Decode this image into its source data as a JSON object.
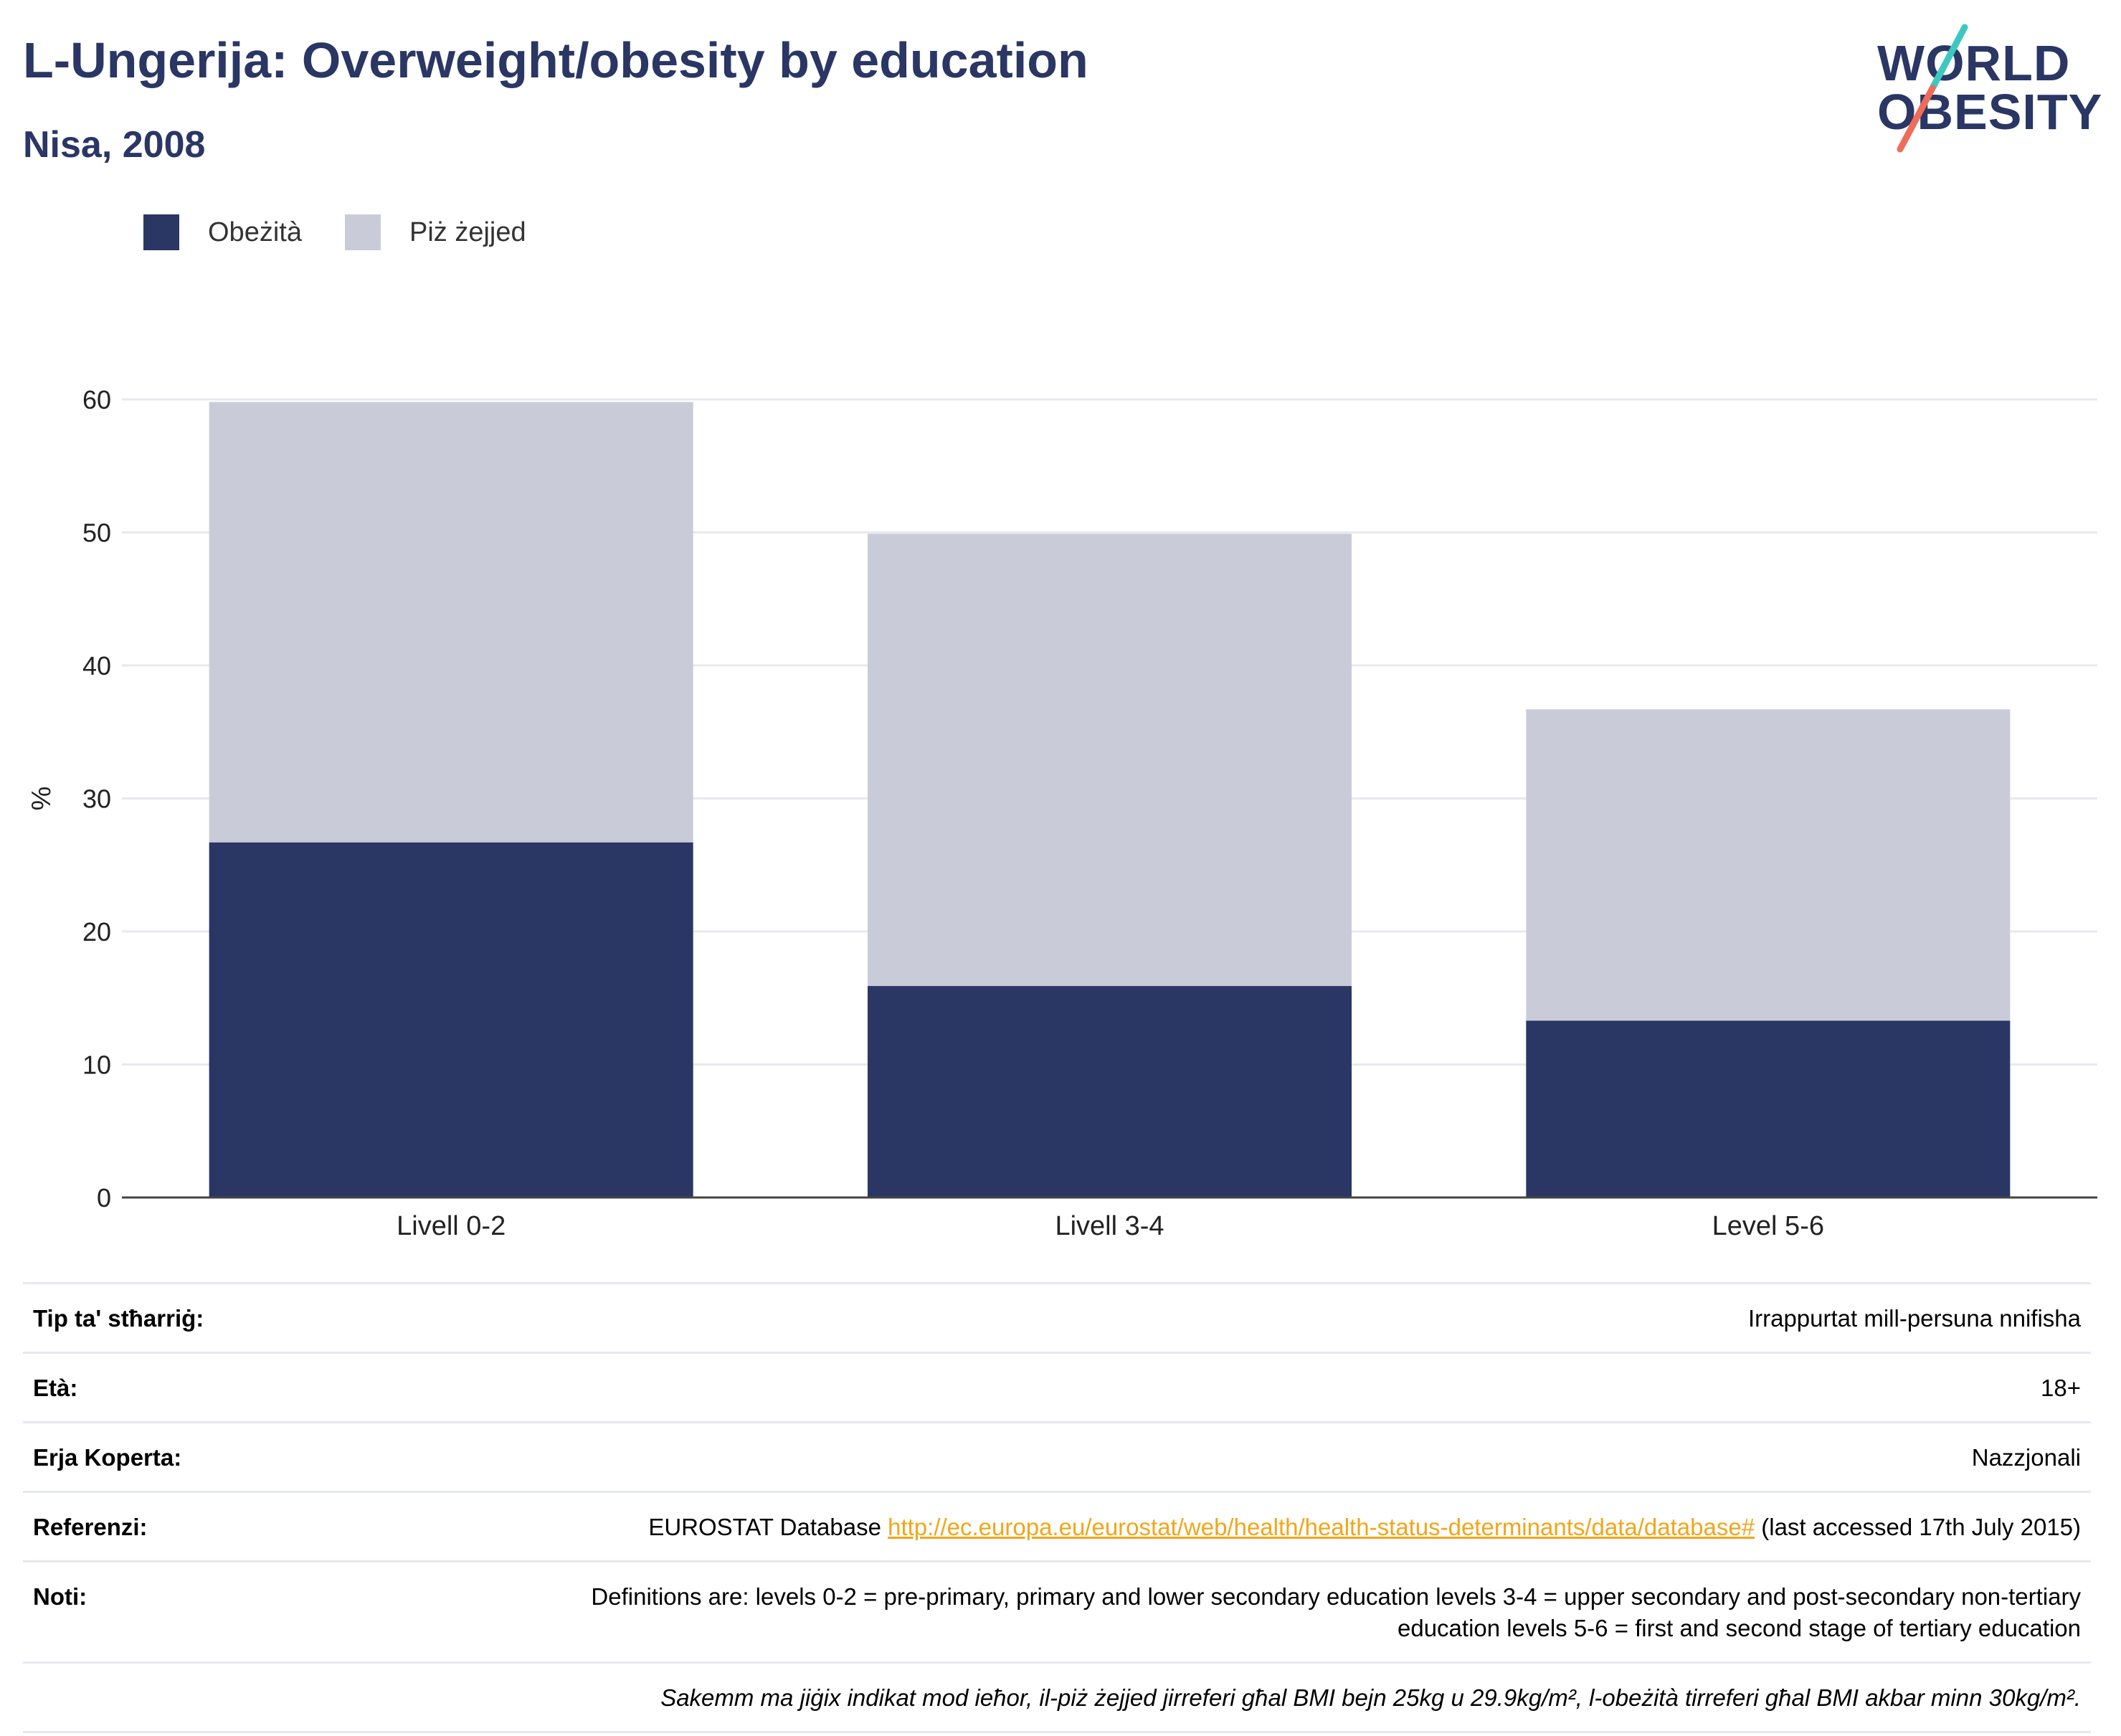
{
  "header": {
    "title": "L-Ungerija: Overweight/obesity by education",
    "subtitle": "Nisa, 2008"
  },
  "logo": {
    "line1": "WORLD",
    "line2": "OBESITY"
  },
  "colors": {
    "obesity": "#2a3664",
    "overweight": "#c9ccd8",
    "accent_teal": "#3cc8c0",
    "accent_coral": "#ef6c5a",
    "link": "#f2a51a"
  },
  "legend": [
    {
      "label": "Obeżità",
      "color": "#2a3664"
    },
    {
      "label": "Piż żejjed",
      "color": "#c9ccd8"
    }
  ],
  "chart_data": {
    "type": "bar",
    "stacked": true,
    "categories": [
      "Livell 0-2",
      "Livell 3-4",
      "Level 5-6"
    ],
    "series": [
      {
        "name": "Obeżità",
        "values": [
          26.7,
          15.9,
          13.3
        ]
      },
      {
        "name": "Piż żejjed",
        "values": [
          33.1,
          34.0,
          23.4
        ]
      }
    ],
    "ylabel": "%",
    "ylim": [
      0,
      60
    ],
    "yticks": [
      0,
      10,
      20,
      30,
      40,
      50,
      60
    ],
    "grid": true,
    "legend_position": "top-left"
  },
  "info_table": [
    {
      "label": "Tip ta' stħarriġ:",
      "value": "Irrappurtat mill-persuna nnifisha"
    },
    {
      "label": "Età:",
      "value": "18+"
    },
    {
      "label": "Erja Koperta:",
      "value": "Nazzjonali"
    },
    {
      "label": "Referenzi:",
      "value_prefix": "EUROSTAT Database ",
      "link": "http://ec.europa.eu/eurostat/web/health/health-status-determinants/data/database#",
      "value_suffix": " (last accessed 17th July 2015)"
    },
    {
      "label": "Noti:",
      "value": "Definitions are: levels 0-2 = pre-primary, primary and lower secondary education levels 3-4 = upper secondary and post-secondary non-tertiary education levels 5-6 = first and second stage of tertiary education"
    },
    {
      "label": "",
      "value": "Sakemm ma jiġix indikat mod ieħor, il-piż żejjed jirreferi għal BMI bejn 25kg u 29.9kg/m², l-obeżità tirreferi għal BMI akbar minn 30kg/m²."
    }
  ]
}
